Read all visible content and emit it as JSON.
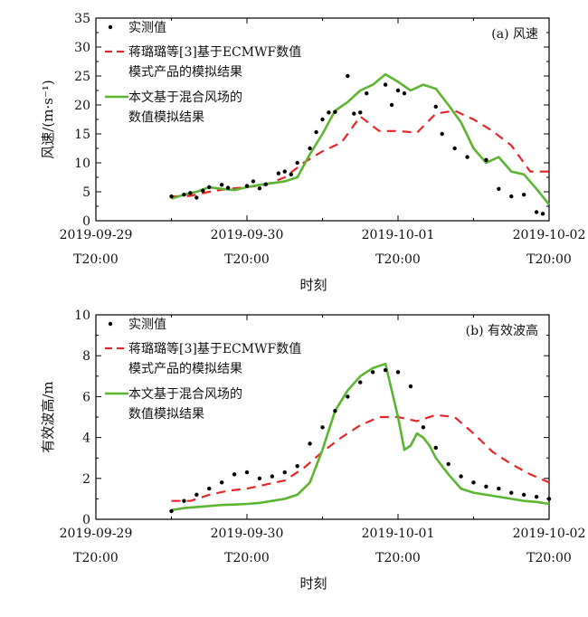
{
  "chart_data": [
    {
      "type": "line",
      "panel_label": "(a) 风速",
      "ylabel": "风速/(m·s⁻¹)",
      "xlabel": "时刻",
      "ylim": [
        0,
        35
      ],
      "yticks": [
        0,
        5,
        10,
        15,
        20,
        25,
        30,
        35
      ],
      "xlim": [
        0,
        72
      ],
      "xticks": [
        {
          "x": 0,
          "line1": "2019-09-29",
          "line2": "T20:00"
        },
        {
          "x": 24,
          "line1": "2019-09-30",
          "line2": "T20:00"
        },
        {
          "x": 48,
          "line1": "2019-10-01",
          "line2": "T20:00"
        },
        {
          "x": 72,
          "line1": "2019-10-02",
          "line2": "T20:00"
        }
      ],
      "legend_position": "top-left",
      "series": [
        {
          "name": "实测值",
          "style": "dots",
          "color": "#000000",
          "x": [
            12,
            14,
            15,
            16,
            17,
            18,
            20,
            21,
            24,
            25,
            26,
            27,
            29,
            30,
            31,
            32,
            34,
            35,
            36,
            37,
            38,
            40,
            41,
            42,
            43,
            46,
            47,
            48,
            49,
            54,
            55,
            57,
            59,
            62,
            64,
            66,
            68,
            70,
            71
          ],
          "y": [
            4.2,
            4.5,
            4.8,
            4.0,
            5.2,
            5.8,
            6.2,
            5.7,
            6.0,
            6.8,
            5.6,
            6.3,
            8.2,
            8.5,
            8.0,
            10.0,
            12.5,
            15.3,
            17.5,
            18.7,
            18.8,
            25.0,
            18.5,
            18.7,
            22.0,
            23.5,
            20.0,
            22.5,
            22.0,
            19.7,
            15.0,
            12.5,
            11.0,
            10.5,
            5.5,
            4.2,
            4.5,
            1.5,
            1.2
          ]
        },
        {
          "name": "蒋璐璐等[3]基于ECMWF数值模式产品的模拟结果",
          "style": "dashed",
          "color": "#e8262a",
          "x": [
            12,
            15,
            18,
            21,
            24,
            27,
            30,
            33,
            36,
            39,
            42,
            45,
            48,
            51,
            54,
            57,
            60,
            63,
            66,
            69,
            72
          ],
          "y": [
            4.2,
            4.3,
            5.0,
            5.5,
            5.8,
            6.2,
            7.5,
            10.0,
            12.0,
            13.5,
            18.0,
            15.5,
            15.5,
            15.2,
            18.5,
            19.0,
            17.5,
            15.5,
            13.0,
            8.5,
            8.5
          ]
        },
        {
          "name": "本文基于混合风场的数值模拟结果",
          "style": "solid",
          "color": "#5cb531",
          "x": [
            12,
            14,
            16,
            18,
            20,
            22,
            24,
            26,
            28,
            30,
            32,
            34,
            36,
            38,
            40,
            42,
            44,
            46,
            48,
            50,
            52,
            54,
            56,
            58,
            60,
            62,
            64,
            66,
            68,
            70,
            72
          ],
          "y": [
            3.8,
            4.5,
            5.0,
            5.8,
            5.5,
            5.3,
            5.8,
            6.2,
            6.5,
            6.8,
            7.5,
            11.5,
            15.0,
            19.0,
            20.5,
            22.5,
            23.5,
            25.3,
            24.0,
            22.5,
            23.5,
            22.8,
            20.0,
            17.0,
            12.5,
            10.0,
            11.0,
            8.5,
            8.0,
            5.5,
            2.8
          ]
        }
      ]
    },
    {
      "type": "line",
      "panel_label": "(b) 有效波高",
      "ylabel": "有效波高/m",
      "xlabel": "时刻",
      "ylim": [
        0,
        10
      ],
      "yticks": [
        0,
        2,
        4,
        6,
        8,
        10
      ],
      "xlim": [
        0,
        72
      ],
      "xticks": [
        {
          "x": 0,
          "line1": "2019-09-29",
          "line2": "T20:00"
        },
        {
          "x": 24,
          "line1": "2019-09-30",
          "line2": "T20:00"
        },
        {
          "x": 48,
          "line1": "2019-10-01",
          "line2": "T20:00"
        },
        {
          "x": 72,
          "line1": "2019-10-02",
          "line2": "T20:00"
        }
      ],
      "legend_position": "top-left",
      "series": [
        {
          "name": "实测值",
          "style": "dots",
          "color": "#000000",
          "x": [
            12,
            14,
            16,
            18,
            20,
            22,
            24,
            26,
            28,
            30,
            32,
            34,
            36,
            38,
            40,
            42,
            44,
            46,
            48,
            50,
            52,
            54,
            56,
            58,
            60,
            62,
            64,
            66,
            68,
            70,
            72
          ],
          "y": [
            0.4,
            0.9,
            1.2,
            1.5,
            1.8,
            2.2,
            2.3,
            2.0,
            2.1,
            2.3,
            2.6,
            3.7,
            4.5,
            5.3,
            6.0,
            6.7,
            7.2,
            7.3,
            7.2,
            6.5,
            4.5,
            3.5,
            2.7,
            2.1,
            1.8,
            1.6,
            1.5,
            1.3,
            1.2,
            1.1,
            1.0
          ]
        },
        {
          "name": "蒋璐璐等[3]基于ECMWF数值模式产品的模拟结果",
          "style": "dashed",
          "color": "#e8262a",
          "x": [
            12,
            15,
            18,
            21,
            24,
            27,
            30,
            33,
            36,
            39,
            42,
            45,
            48,
            51,
            54,
            57,
            60,
            63,
            66,
            69,
            72
          ],
          "y": [
            0.9,
            0.9,
            1.2,
            1.4,
            1.5,
            1.7,
            1.9,
            2.5,
            3.3,
            4.0,
            4.6,
            5.0,
            5.0,
            4.8,
            5.1,
            5.0,
            4.2,
            3.3,
            2.7,
            2.2,
            1.8
          ]
        },
        {
          "name": "本文基于混合风场的数值模拟结果",
          "style": "solid",
          "color": "#5cb531",
          "x": [
            12,
            14,
            16,
            18,
            20,
            22,
            24,
            26,
            28,
            30,
            32,
            34,
            36,
            38,
            40,
            42,
            44,
            46,
            48,
            49,
            50,
            51,
            52,
            53,
            54,
            56,
            58,
            60,
            62,
            64,
            66,
            68,
            70,
            72
          ],
          "y": [
            0.45,
            0.55,
            0.6,
            0.65,
            0.7,
            0.72,
            0.75,
            0.8,
            0.9,
            1.0,
            1.2,
            1.8,
            3.4,
            5.3,
            6.3,
            7.0,
            7.4,
            7.6,
            5.0,
            3.4,
            3.6,
            4.2,
            4.0,
            3.6,
            3.0,
            2.2,
            1.5,
            1.3,
            1.2,
            1.1,
            1.0,
            0.9,
            0.85,
            0.75
          ]
        }
      ]
    }
  ]
}
